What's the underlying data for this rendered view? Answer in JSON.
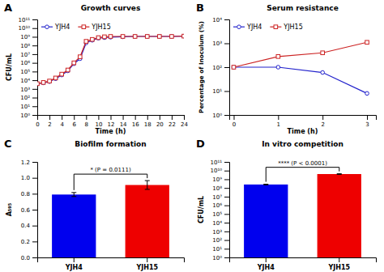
{
  "chart_data": [
    {
      "type": "line",
      "panel_label": "A",
      "title": "Growth curves",
      "xlabel": "Time (h)",
      "ylabel": "CFU/mL",
      "x": [
        0,
        1,
        2,
        3,
        4,
        5,
        6,
        7,
        8,
        9,
        10,
        11,
        12,
        14,
        16,
        18,
        20,
        22,
        24
      ],
      "series": [
        {
          "name": "YJH4",
          "color": "#2222CC",
          "marker": "circle",
          "values": [
            4000,
            5000,
            7000,
            15000,
            40000,
            120000,
            800000,
            3000000,
            200000000,
            400000000,
            700000000,
            800000000,
            900000000,
            1000000000,
            1100000000,
            1100000000,
            1100000000,
            1100000000,
            1200000000
          ]
        },
        {
          "name": "YJH15",
          "color": "#CC2222",
          "marker": "square",
          "values": [
            4000,
            5500,
            8000,
            18000,
            50000,
            150000,
            1000000,
            5000000,
            300000000,
            500000000,
            800000000,
            1000000000,
            1100000000,
            1100000000,
            1100000000,
            1100000000,
            1100000000,
            1100000000,
            1200000000
          ]
        }
      ],
      "xlim": [
        0,
        24
      ],
      "xticks": [
        0,
        2,
        4,
        6,
        8,
        10,
        12,
        14,
        16,
        18,
        20,
        22,
        24
      ],
      "ylim": [
        1,
        100000000000
      ],
      "yticks": [
        {
          "value": 1,
          "label": "10⁰"
        },
        {
          "value": 10,
          "label": "10¹"
        },
        {
          "value": 100,
          "label": "10²"
        },
        {
          "value": 1000,
          "label": "10³"
        },
        {
          "value": 10000,
          "label": "10⁴"
        },
        {
          "value": 100000,
          "label": "10⁵"
        },
        {
          "value": 1000000,
          "label": "10⁶"
        },
        {
          "value": 10000000,
          "label": "10⁷"
        },
        {
          "value": 100000000,
          "label": "10⁸"
        },
        {
          "value": 1000000000,
          "label": "10⁹"
        },
        {
          "value": 10000000000,
          "label": "10¹⁰"
        },
        {
          "value": 100000000000,
          "label": "10¹¹"
        }
      ],
      "log": "y",
      "legend": "upper left"
    },
    {
      "type": "line",
      "panel_label": "B",
      "title": "Serum resistance",
      "xlabel": "Time (h)",
      "ylabel": "Percentage of Inoculum (%)",
      "x": [
        0,
        1,
        2,
        3
      ],
      "series": [
        {
          "name": "YJH4",
          "color": "#2222CC",
          "marker": "circle",
          "values": [
            100,
            100,
            60,
            8
          ]
        },
        {
          "name": "YJH15",
          "color": "#CC2222",
          "marker": "square",
          "values": [
            100,
            280,
            400,
            1100
          ]
        }
      ],
      "xlim": [
        -0.1,
        3.2
      ],
      "xticks": [
        0,
        1,
        2,
        3
      ],
      "ylim": [
        1,
        10000
      ],
      "yticks": [
        {
          "value": 1,
          "label": "10⁰"
        },
        {
          "value": 10,
          "label": "10¹"
        },
        {
          "value": 100,
          "label": "10²"
        },
        {
          "value": 1000,
          "label": "10³"
        },
        {
          "value": 10000,
          "label": "10⁴"
        }
      ],
      "log": "y",
      "legend": "upper left"
    },
    {
      "type": "bar",
      "panel_label": "C",
      "title": "Biofilm formation",
      "ylabel": "A₅₉₅",
      "categories": [
        "YJH4",
        "YJH15"
      ],
      "values": [
        0.79,
        0.91
      ],
      "errors": [
        0.025,
        0.055
      ],
      "colors": [
        "#0000EE",
        "#EE0000"
      ],
      "ylim": [
        0.0,
        1.2
      ],
      "yticks": [
        {
          "value": 0.0,
          "label": "0.0"
        },
        0.2,
        0.4,
        0.6,
        0.8,
        {
          "value": 1.0,
          "label": "1.0"
        },
        1.2
      ],
      "annotations": [
        {
          "text": "* (P = 0.0111)"
        }
      ]
    },
    {
      "type": "bar",
      "panel_label": "D",
      "title": "In vitro competition",
      "ylabel": "CFU/mL",
      "categories": [
        "YJH4",
        "YJH15"
      ],
      "values": [
        250000000,
        4000000000
      ],
      "errors": [
        20000000,
        300000000
      ],
      "colors": [
        "#0000EE",
        "#EE0000"
      ],
      "ylim": [
        1,
        100000000000
      ],
      "yticks": [
        {
          "value": 1,
          "label": "10⁰"
        },
        {
          "value": 10,
          "label": "10¹"
        },
        {
          "value": 100,
          "label": "10²"
        },
        {
          "value": 1000,
          "label": "10³"
        },
        {
          "value": 10000,
          "label": "10⁴"
        },
        {
          "value": 100000,
          "label": "10⁵"
        },
        {
          "value": 1000000,
          "label": "10⁶"
        },
        {
          "value": 10000000,
          "label": "10⁷"
        },
        {
          "value": 100000000,
          "label": "10⁸"
        },
        {
          "value": 1000000000,
          "label": "10⁹"
        },
        {
          "value": 10000000000,
          "label": "10¹⁰"
        },
        {
          "value": 100000000000,
          "label": "10¹¹"
        }
      ],
      "log": "y",
      "annotations": [
        {
          "text": "**** (P < 0.0001)"
        }
      ]
    }
  ]
}
